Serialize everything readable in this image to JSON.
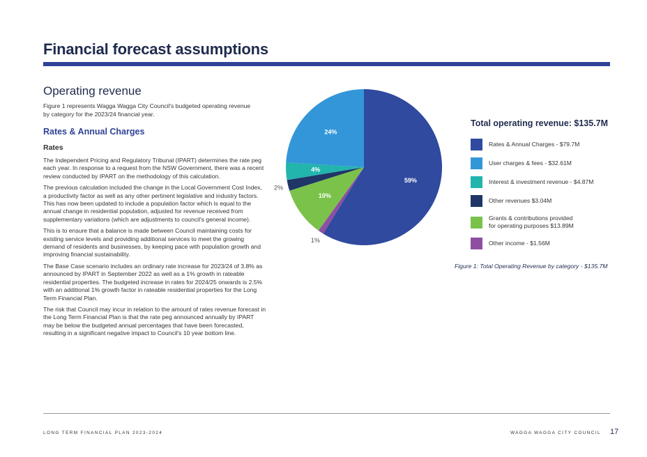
{
  "page_title": "Financial forecast assumptions",
  "section_heading": "Operating revenue",
  "intro": "Figure 1 represents Wagga Wagga City Council's budgeted operating revenue by category for the 2023/24 financial year.",
  "sub_heading": "Rates & Annual Charges",
  "minor_heading": "Rates",
  "paragraphs": [
    "The Independent Pricing and Regulatory Tribunal (IPART) determines the rate peg each year. In response to a request from the NSW Government, there was a recent review conducted by IPART on the methodology of this calculation.",
    "The previous calculation included the change in the Local Government Cost Index, a productivity factor as well as any other pertinent legislative and industry factors. This has now been updated to include a population factor which is equal to the annual change in residential population, adjusted for revenue received from supplementary variations (which are adjustments to council's general income).",
    "This is to ensure that a balance is made between Council maintaining costs for existing service levels and providing additional services to meet the growing demand of residents and businesses, by keeping pace with population growth and improving financial sustainability.",
    "The Base Case scenario includes an ordinary rate increase for 2023/24 of 3.8% as announced by IPART in September 2022 as well as a 1% growth in rateable residential properties. The budgeted increase in rates for 2024/25 onwards is 2.5% with an additional 1% growth factor in rateable residential properties for the Long Term Financial Plan.",
    "The risk that Council may incur in relation to the amount of rates revenue forecast in the Long Term Financial Plan is that the rate peg announced annually by IPART may be below the budgeted annual percentages that have been forecasted, resulting in a significant negative impact to Council's 10 year bottom line."
  ],
  "chart_data": {
    "type": "pie",
    "title": "Total operating revenue: $135.7M",
    "caption": "Figure 1: Total Operating Revenue by category - $135.7M",
    "start_angle_deg": 90,
    "direction": "clockwise",
    "slices": [
      {
        "label": "Rates & Annual Charges - $79.7M",
        "value": 79.7,
        "pct_label": "59%",
        "color": "#2f4a9e",
        "label_color": "#ffffff"
      },
      {
        "label": "Other income - $1.56M",
        "value": 1.56,
        "pct_label": "1%",
        "color": "#8e4fa2",
        "label_color": "#555555"
      },
      {
        "label": "Grants & contributions provided\nfor operating purposes $13.89M",
        "value": 13.89,
        "pct_label": "10%",
        "color": "#7bc24b",
        "label_color": "#ffffff"
      },
      {
        "label": "Other revenues $3.04M",
        "value": 3.04,
        "pct_label": "2%",
        "color": "#1f3666",
        "label_color": "#555555"
      },
      {
        "label": "Interest & investment revenue - $4.87M",
        "value": 4.87,
        "pct_label": "4%",
        "color": "#22b5ad",
        "label_color": "#ffffff"
      },
      {
        "label": "User charges & fees - $32.61M",
        "value": 32.61,
        "pct_label": "24%",
        "color": "#3396d8",
        "label_color": "#ffffff"
      }
    ],
    "legend_order": [
      "Rates & Annual Charges - $79.7M",
      "User charges & fees - $32.61M",
      "Interest & investment revenue - $4.87M",
      "Other revenues $3.04M",
      "Grants & contributions provided\nfor operating purposes $13.89M",
      "Other income - $1.56M"
    ]
  },
  "footer": {
    "left": "LONG TERM FINANCIAL PLAN 2023-2024",
    "right": "WAGGA WAGGA CITY COUNCIL",
    "page_number": "17"
  }
}
